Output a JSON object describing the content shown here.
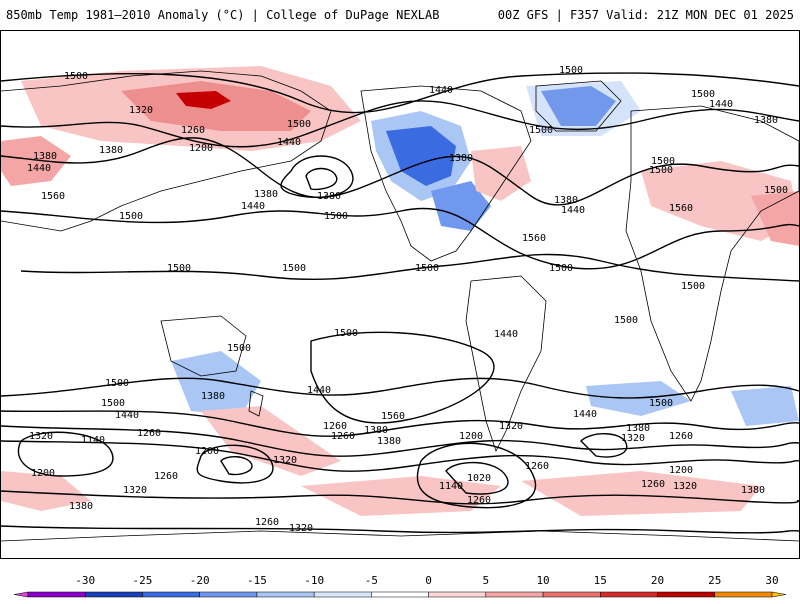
{
  "header": {
    "left_title": "850mb Temp 1981–2010 Anomaly (°C) | College of DuPage NEXLAB",
    "right_title": "00Z GFS | F357 Valid: 21Z MON DEC 01 2025"
  },
  "contour_labels": [
    "1500",
    "1440",
    "1500",
    "1500",
    "1440",
    "1380",
    "1320",
    "1260",
    "1200",
    "1500",
    "1440",
    "1380",
    "1500",
    "1380",
    "1440",
    "1380",
    "1500",
    "1500",
    "1440",
    "1380",
    "1560",
    "1380",
    "1440",
    "1560",
    "1500",
    "1500",
    "1500",
    "1380",
    "1500",
    "1500",
    "1500",
    "1560",
    "1500",
    "1500",
    "1500",
    "1440",
    "1500",
    "1500",
    "1500",
    "1440",
    "1500",
    "1440",
    "1500",
    "1440",
    "1380",
    "1260",
    "1380",
    "1320",
    "1140",
    "1260",
    "1200",
    "1260",
    "1320",
    "1560",
    "1380",
    "1200",
    "1200",
    "1320",
    "1380",
    "1320",
    "1260",
    "1260",
    "1320",
    "1260",
    "1200",
    "1140",
    "1020",
    "1260",
    "1320",
    "1380",
    "1380",
    "1260",
    "1260",
    "1320"
  ],
  "colorbar": {
    "ticks": [
      "-30",
      "-25",
      "-20",
      "-15",
      "-10",
      "-5",
      "0",
      "5",
      "10",
      "15",
      "20",
      "25",
      "30"
    ],
    "colors": [
      "#e040e0",
      "#8a00c8",
      "#1a40b8",
      "#3a6be0",
      "#6f98ee",
      "#a9c6f5",
      "#d8e8fb",
      "#ffffff",
      "#ffd6d6",
      "#f4a6a6",
      "#ea6f6f",
      "#d42a2a",
      "#b80000",
      "#f08a00",
      "#ffc000"
    ]
  }
}
